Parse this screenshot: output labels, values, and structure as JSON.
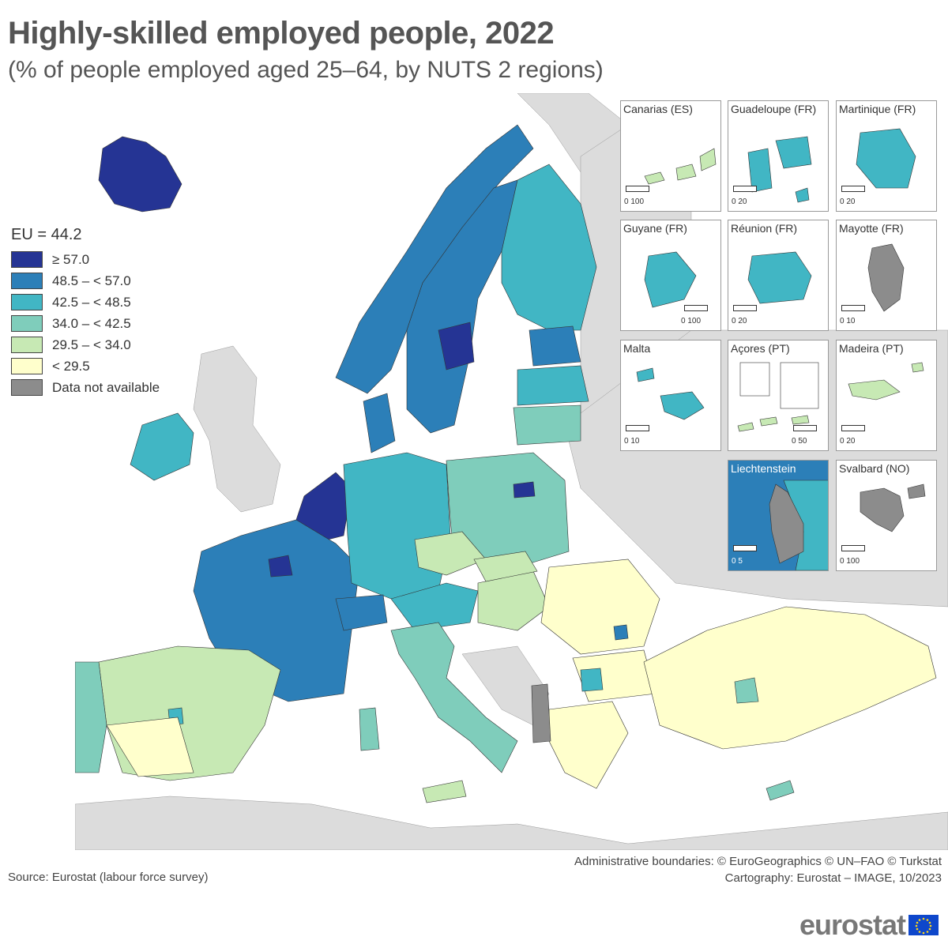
{
  "header": {
    "title": "Highly-skilled employed people, 2022",
    "subtitle": "(% of people employed aged 25–64, by NUTS 2 regions)"
  },
  "legend": {
    "title": "EU = 44.2",
    "items": [
      {
        "label": "≥ 57.0",
        "color": "#253494"
      },
      {
        "label": "48.5 – < 57.0",
        "color": "#2c7fb8"
      },
      {
        "label": "42.5 – < 48.5",
        "color": "#41b6c4"
      },
      {
        "label": "34.0 – < 42.5",
        "color": "#7fcdbb"
      },
      {
        "label": "29.5 – < 34.0",
        "color": "#c7e9b4"
      },
      {
        "label": "< 29.5",
        "color": "#ffffcc"
      },
      {
        "label": "Data not available",
        "color": "#8c8c8c"
      }
    ]
  },
  "insets": [
    {
      "title": "Canarias (ES)",
      "scale": "0 100"
    },
    {
      "title": "Guadeloupe (FR)",
      "scale": "0 20"
    },
    {
      "title": "Martinique (FR)",
      "scale": "0 20"
    },
    {
      "title": "Guyane (FR)",
      "scale": "0 100"
    },
    {
      "title": "Réunion (FR)",
      "scale": "0 20"
    },
    {
      "title": "Mayotte (FR)",
      "scale": "0 10"
    },
    {
      "title": "Malta",
      "scale": "0 10"
    },
    {
      "title": "Açores (PT)",
      "scale": "0 50"
    },
    {
      "title": "Madeira (PT)",
      "scale": "0 20"
    },
    {
      "title": "Liechtenstein",
      "scale": "0 5"
    },
    {
      "title": "Svalbard (NO)",
      "scale": "0 100"
    }
  ],
  "footer": {
    "credits_line1": "Administrative boundaries: © EuroGeographics © UN–FAO © Turkstat",
    "credits_line2": "Cartography: Eurostat – IMAGE, 10/2023",
    "source": "Source: Eurostat (labour force survey)",
    "logo": "eurostat"
  },
  "colors": {
    "no_data_fill": "#dcdcdc",
    "sea": "#ffffff",
    "border": "#000000"
  }
}
